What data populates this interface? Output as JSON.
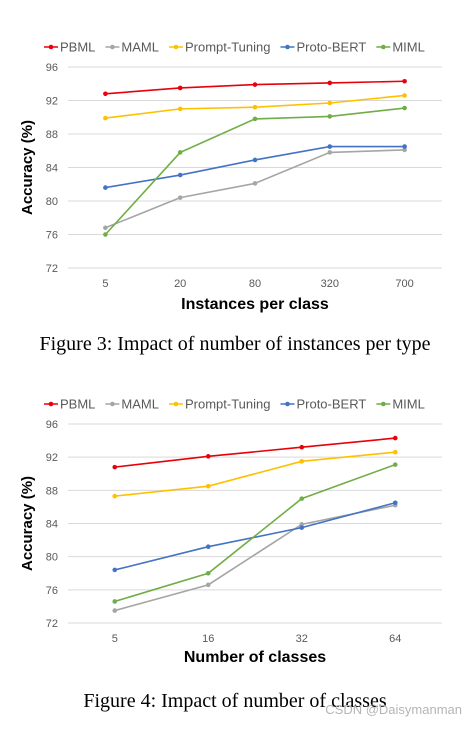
{
  "chart_data": [
    {
      "type": "line",
      "categories": [
        "5",
        "20",
        "80",
        "320",
        "700"
      ],
      "series": [
        {
          "name": "PBML",
          "color": "#e8000b",
          "values": [
            92.8,
            93.5,
            93.9,
            94.1,
            94.3
          ]
        },
        {
          "name": "MAML",
          "color": "#a5a5a5",
          "values": [
            76.8,
            80.4,
            82.1,
            85.8,
            86.1
          ]
        },
        {
          "name": "Prompt-Tuning",
          "color": "#ffc000",
          "values": [
            89.9,
            91.0,
            91.2,
            91.7,
            92.6
          ]
        },
        {
          "name": "Proto-BERT",
          "color": "#4472c4",
          "values": [
            81.6,
            83.1,
            84.9,
            86.5,
            86.5
          ]
        },
        {
          "name": "MIML",
          "color": "#70ad47",
          "values": [
            76.0,
            85.8,
            89.8,
            90.1,
            91.1
          ]
        }
      ],
      "xlabel": "Instances per class",
      "ylabel": "Accuracy (%)",
      "ylim": [
        72,
        96
      ],
      "yticks": [
        "72",
        "76",
        "80",
        "84",
        "88",
        "92",
        "96"
      ],
      "grid": true,
      "legend": "top"
    },
    {
      "type": "line",
      "categories": [
        "5",
        "16",
        "32",
        "64"
      ],
      "series": [
        {
          "name": "PBML",
          "color": "#e8000b",
          "values": [
            90.8,
            92.1,
            93.2,
            94.3
          ]
        },
        {
          "name": "MAML",
          "color": "#a5a5a5",
          "values": [
            73.5,
            76.6,
            83.9,
            86.2
          ]
        },
        {
          "name": "Prompt-Tuning",
          "color": "#ffc000",
          "values": [
            87.3,
            88.5,
            91.5,
            92.6
          ]
        },
        {
          "name": "Proto-BERT",
          "color": "#4472c4",
          "values": [
            78.4,
            81.2,
            83.5,
            86.5
          ]
        },
        {
          "name": "MIML",
          "color": "#70ad47",
          "values": [
            74.6,
            78.0,
            87.0,
            91.1
          ]
        }
      ],
      "xlabel": "Number of classes",
      "ylabel": "Accuracy (%)",
      "ylim": [
        72,
        96
      ],
      "yticks": [
        "72",
        "76",
        "80",
        "84",
        "88",
        "92",
        "96"
      ],
      "grid": true,
      "legend": "top"
    }
  ],
  "captions": {
    "fig3": "Figure 3: Impact of number of instances per type",
    "fig4": "Figure 4: Impact of number of classes"
  },
  "watermark": "CSDN @Daisymanman"
}
